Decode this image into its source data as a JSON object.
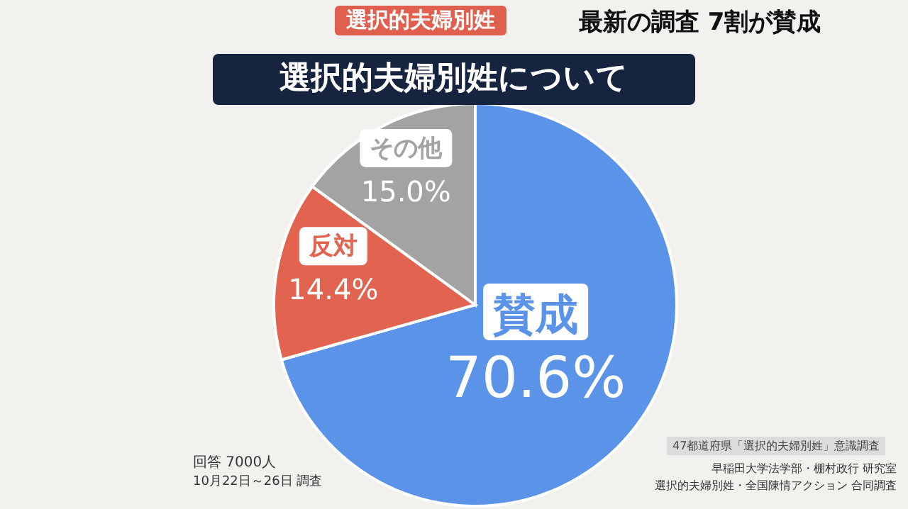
{
  "chart_data": {
    "type": "pie",
    "title": "選択的夫婦別姓について",
    "subtitle": "最新の調査 7割が賛成",
    "categories": [
      "賛成",
      "反対",
      "その他"
    ],
    "values": [
      70.6,
      14.4,
      15.0
    ],
    "value_labels": [
      "70.6%",
      "14.4%",
      "15.0%"
    ],
    "colors": [
      "#5b93e8",
      "#e2634f",
      "#a3a3a3"
    ],
    "legend": false,
    "annotations": [
      "選択的夫婦別姓",
      "回答 7000人",
      "10月22日～26日 調査",
      "47都道府県「選択的夫婦別姓」意識調査",
      "早稲田大学法学部・棚村政行 研究室",
      "選択的夫婦別姓・全国陳情アクション 合同調査"
    ]
  }
}
